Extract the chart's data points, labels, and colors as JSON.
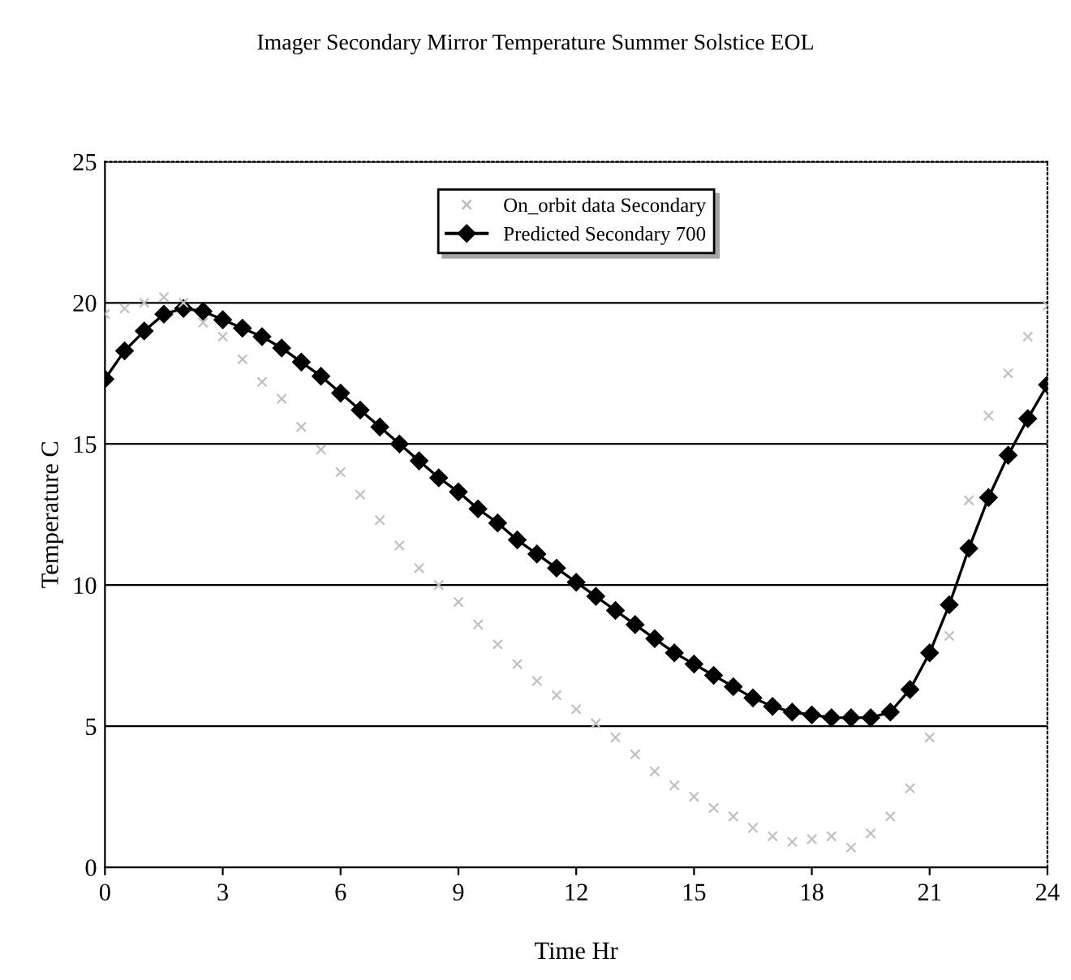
{
  "chart_data": {
    "type": "line",
    "title": "Imager Secondary Mirror Temperature Summer Solstice EOL",
    "xlabel": "Time Hr",
    "ylabel": "Temperature C",
    "x": [
      0,
      0.5,
      1,
      1.5,
      2,
      2.5,
      3,
      3.5,
      4,
      4.5,
      5,
      5.5,
      6,
      6.5,
      7,
      7.5,
      8,
      8.5,
      9,
      9.5,
      10,
      10.5,
      11,
      11.5,
      12,
      12.5,
      13,
      13.5,
      14,
      14.5,
      15,
      15.5,
      16,
      16.5,
      17,
      17.5,
      18,
      18.5,
      19,
      19.5,
      20,
      20.5,
      21,
      21.5,
      22,
      22.5,
      23,
      23.5,
      24
    ],
    "series": [
      {
        "name": "On_orbit data Secondary",
        "type": "scatter",
        "marker": "cross",
        "color": "#c0c0c0",
        "values": [
          19.6,
          19.8,
          20.0,
          20.2,
          20.0,
          19.3,
          18.8,
          18.0,
          17.2,
          16.6,
          15.6,
          14.8,
          14.0,
          13.2,
          12.3,
          11.4,
          10.6,
          10.0,
          9.4,
          8.6,
          7.9,
          7.2,
          6.6,
          6.1,
          5.6,
          5.1,
          4.6,
          4.0,
          3.4,
          2.9,
          2.5,
          2.1,
          1.8,
          1.4,
          1.1,
          0.9,
          1.0,
          1.1,
          0.7,
          1.2,
          1.8,
          2.8,
          4.6,
          8.2,
          13.0,
          16.0,
          17.5,
          18.8,
          19.9
        ]
      },
      {
        "name": "Predicted Secondary 700",
        "type": "line",
        "marker": "diamond",
        "color": "#000000",
        "values": [
          17.3,
          18.3,
          19.0,
          19.6,
          19.8,
          19.7,
          19.4,
          19.1,
          18.8,
          18.4,
          17.9,
          17.4,
          16.8,
          16.2,
          15.6,
          15.0,
          14.4,
          13.8,
          13.3,
          12.7,
          12.2,
          11.6,
          11.1,
          10.6,
          10.1,
          9.6,
          9.1,
          8.6,
          8.1,
          7.6,
          7.2,
          6.8,
          6.4,
          6.0,
          5.7,
          5.5,
          5.4,
          5.3,
          5.3,
          5.3,
          5.5,
          6.3,
          7.6,
          9.3,
          11.3,
          13.1,
          14.6,
          15.9,
          17.1
        ]
      }
    ],
    "xlim": [
      0,
      24
    ],
    "xticks": [
      0,
      3,
      6,
      9,
      12,
      15,
      18,
      21,
      24
    ],
    "ylim": [
      0,
      25
    ],
    "yticks": [
      0,
      5,
      10,
      15,
      20,
      25
    ],
    "grid": "y",
    "legend": "top"
  }
}
